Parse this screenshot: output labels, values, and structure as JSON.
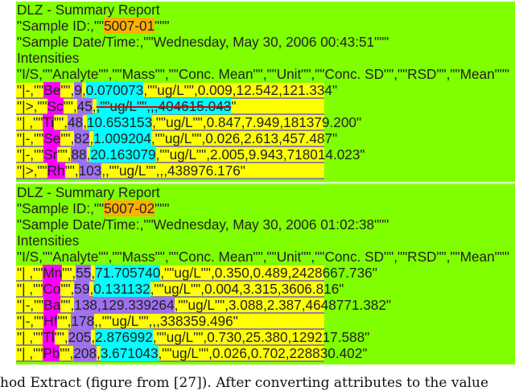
{
  "reports": [
    {
      "title": "DLZ - Summary Report",
      "sample_id_prefix": "\"Sample ID:,\"\"",
      "sample_id": "5007-01",
      "sample_id_suffix": "\"\"\"",
      "datetime": "\"Sample Date/Time:,\"\"Wednesday, May 30, 2006 00:43:51\"\"\"",
      "section": "Intensities",
      "header": "\"I/S,\"\"Analyte\"\",\"\"Mass\"\",\"\"Conc. Mean\"\",\"\"Unit\"\",\"\"Conc. SD\"\",\"\"RSD\"\",\"\"Mean\"\"\"",
      "rows": [
        [
          [
            "plain",
            "\"|-,\"\""
          ],
          [
            "analyte",
            "Be"
          ],
          [
            "plain",
            "\"\","
          ],
          [
            "mass",
            "9"
          ],
          [
            "plain",
            ","
          ],
          [
            "conc",
            "0.070073"
          ],
          [
            "plain",
            ",\"\"ug/L\"\",0.009,12.542,121.334\""
          ]
        ],
        [
          [
            "plain",
            "\"|>,\"\""
          ],
          [
            "analyte",
            "Sc"
          ],
          [
            "plain",
            "\"\","
          ],
          [
            "mass",
            "45"
          ],
          [
            "plain",
            ","
          ],
          [
            "struck",
            ",\"\"ug/L\"\",,,404615.043"
          ],
          [
            "plain",
            "\""
          ]
        ],
        [
          [
            "plain",
            "\"| ,\"\""
          ],
          [
            "analyte",
            "Ti"
          ],
          [
            "plain",
            "\"\","
          ],
          [
            "mass",
            "48"
          ],
          [
            "plain",
            ","
          ],
          [
            "conc",
            "10.653153"
          ],
          [
            "plain",
            ",\"\"ug/L\"\",0.847,7.949,181379.200\""
          ]
        ],
        [
          [
            "plain",
            "\"|-,\"\""
          ],
          [
            "analyte",
            "Se"
          ],
          [
            "plain",
            "\"\","
          ],
          [
            "mass",
            "82"
          ],
          [
            "plain",
            ","
          ],
          [
            "conc",
            "1.009204"
          ],
          [
            "plain",
            ",\"\"ug/L\"\",0.026,2.613,457.487\""
          ]
        ],
        [
          [
            "plain",
            "\"|-,\"\""
          ],
          [
            "analyte",
            "Sr"
          ],
          [
            "plain",
            "\"\","
          ],
          [
            "mass",
            "88"
          ],
          [
            "plain",
            ","
          ],
          [
            "conc",
            "20.163079"
          ],
          [
            "plain",
            ",\"\"ug/L\"\",2.005,9.943,718014.023\""
          ]
        ],
        [
          [
            "plain",
            "\"|>,\"\""
          ],
          [
            "analyte",
            "Rh"
          ],
          [
            "plain",
            "\"\","
          ],
          [
            "mass",
            "103"
          ],
          [
            "plain",
            ",,\"\"ug/L\"\",,,438976.176\""
          ]
        ]
      ]
    },
    {
      "title": "DLZ - Summary Report",
      "sample_id_prefix": "\"Sample ID:,\"\"",
      "sample_id": "5007-02",
      "sample_id_suffix": "\"\"\"",
      "datetime": "\"Sample Date/Time:,\"\"Wednesday, May 30, 2006 01:02:38\"\"\"",
      "section": "Intensities",
      "header": "\"I/S,\"\"Analyte\"\",\"\"Mass\"\",\"\"Conc. Mean\"\",\"\"Unit\"\",\"\"Conc. SD\"\",\"\"RSD\"\",\"\"Mean\"\"\"",
      "rows": [
        [
          [
            "plain",
            "\"| ,\"\""
          ],
          [
            "analyte",
            "Mn"
          ],
          [
            "plain",
            "\"\","
          ],
          [
            "mass",
            "55"
          ],
          [
            "plain",
            ","
          ],
          [
            "conc",
            "71.705740"
          ],
          [
            "plain",
            ",\"\"ug/L\"\",0.350,0.489,2428667.736\""
          ]
        ],
        [
          [
            "plain",
            "\"| ,\"\""
          ],
          [
            "analyte",
            "Co"
          ],
          [
            "plain",
            "\"\","
          ],
          [
            "mass",
            "59"
          ],
          [
            "plain",
            ","
          ],
          [
            "conc",
            "0.131132"
          ],
          [
            "plain",
            ",\"\"ug/L\"\",0.004,3.315,3606.816\""
          ]
        ],
        [
          [
            "plain",
            "\"|-,\"\""
          ],
          [
            "analyte",
            "Ba"
          ],
          [
            "plain",
            "\"\","
          ],
          [
            "mass",
            "138,129.339264"
          ],
          [
            "plain",
            ",\"\"ug/L\"\",3.088,2.387,4648771.382\""
          ]
        ],
        [
          [
            "plain",
            "\"|-,\"\""
          ],
          [
            "analyte",
            "Hf"
          ],
          [
            "plain",
            "\"\","
          ],
          [
            "mass",
            "178"
          ],
          [
            "plain",
            ",,\"\"ug/L\"\",,,338359.496\""
          ]
        ],
        [
          [
            "plain",
            "\"| ,\"\""
          ],
          [
            "analyte",
            "Tl"
          ],
          [
            "plain",
            "\"\","
          ],
          [
            "mass",
            "205"
          ],
          [
            "plain",
            ","
          ],
          [
            "conc",
            "2.876992"
          ],
          [
            "plain",
            ",\"\"ug/L\"\",0.730,25.380,129217.588\""
          ]
        ],
        [
          [
            "plain",
            "\"| ,\"\""
          ],
          [
            "analyte",
            "Pb"
          ],
          [
            "plain",
            "\"\","
          ],
          [
            "mass",
            "208"
          ],
          [
            "plain",
            ","
          ],
          [
            "conc",
            "3.671043"
          ],
          [
            "plain",
            ",\"\"ug/L\"\",0.026,0.702,228830.402\""
          ]
        ]
      ]
    }
  ],
  "caption_fragment": "hod Extract (figure from [27]). After converting attributes to the value",
  "colors": {
    "report_bg": "#80ff00",
    "row_bg": "#ffff00",
    "sample_id": "#ffb000",
    "analyte": "#ff00ff",
    "mass": "#a070f0",
    "conc_mean": "#00ffff",
    "strike": "#e00000"
  }
}
